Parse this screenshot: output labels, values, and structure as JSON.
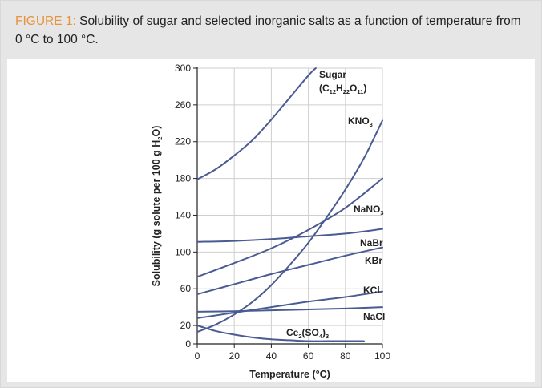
{
  "caption": {
    "figure_label": "FIGURE 1:",
    "text": " Solubility of sugar and selected inorganic salts as a function of temperature from 0 °C to 100 °C."
  },
  "colors": {
    "line": "#4a5a92",
    "grid": "#cfcfcf",
    "axis": "#222222",
    "caption_accent": "#e8923a",
    "panel_background": "#e6e6e6"
  },
  "chart_data": {
    "type": "line",
    "title": "",
    "xlabel": "Temperature (°C)",
    "ylabel": "Solubility (g solute per 100 g H2O)",
    "xlim": [
      0,
      100
    ],
    "ylim": [
      0,
      300
    ],
    "xticks": [
      "0",
      "20",
      "40",
      "60",
      "80",
      "100"
    ],
    "yticks": [
      "0",
      "20",
      "60",
      "100",
      "140",
      "180",
      "220",
      "260",
      "300"
    ],
    "grid": true,
    "legend": "none (labels placed next to lines)",
    "series": [
      {
        "name": "Sugar (C12H22O11)",
        "label_main": "Sugar",
        "label_formula": [
          "(C",
          "12",
          "H",
          "22",
          "O",
          "11",
          ")"
        ],
        "x": [
          0,
          10,
          20,
          30,
          40,
          50,
          60,
          64
        ],
        "y": [
          179,
          190,
          205,
          222,
          244,
          268,
          292,
          300
        ]
      },
      {
        "name": "KNO3",
        "label_formula": [
          "KNO",
          "3"
        ],
        "x": [
          0,
          10,
          20,
          30,
          40,
          50,
          60,
          70,
          80,
          90,
          100
        ],
        "y": [
          13,
          21,
          32,
          46,
          64,
          86,
          110,
          138,
          168,
          202,
          243
        ]
      },
      {
        "name": "NaNO3",
        "label_formula": [
          "NaNO",
          "3"
        ],
        "x": [
          0,
          20,
          40,
          60,
          80,
          100
        ],
        "y": [
          73,
          88,
          104,
          124,
          148,
          180
        ]
      },
      {
        "name": "NaBr",
        "label_formula": [
          "NaBr"
        ],
        "x": [
          0,
          20,
          40,
          60,
          80,
          100
        ],
        "y": [
          111,
          112,
          114,
          117,
          120,
          125
        ]
      },
      {
        "name": "KBr",
        "label_formula": [
          "KBr"
        ],
        "x": [
          0,
          20,
          40,
          60,
          80,
          100
        ],
        "y": [
          54,
          65,
          76,
          86,
          96,
          105
        ]
      },
      {
        "name": "KCl",
        "label_formula": [
          "KCl"
        ],
        "x": [
          0,
          20,
          40,
          60,
          80,
          100
        ],
        "y": [
          28,
          34,
          40,
          46,
          51,
          57
        ]
      },
      {
        "name": "NaCl",
        "label_formula": [
          "NaCl"
        ],
        "x": [
          0,
          20,
          40,
          60,
          80,
          100
        ],
        "y": [
          35,
          35.5,
          36.5,
          37.5,
          38.5,
          40
        ]
      },
      {
        "name": "Ce2(SO4)3",
        "label_formula": [
          "Ce",
          "2",
          "(SO",
          "4",
          ")",
          "3"
        ],
        "x": [
          0,
          10,
          20,
          30,
          40,
          50,
          60,
          70,
          80,
          90
        ],
        "y": [
          20,
          14,
          10,
          7,
          5,
          4,
          3,
          3,
          3,
          3
        ]
      }
    ]
  }
}
